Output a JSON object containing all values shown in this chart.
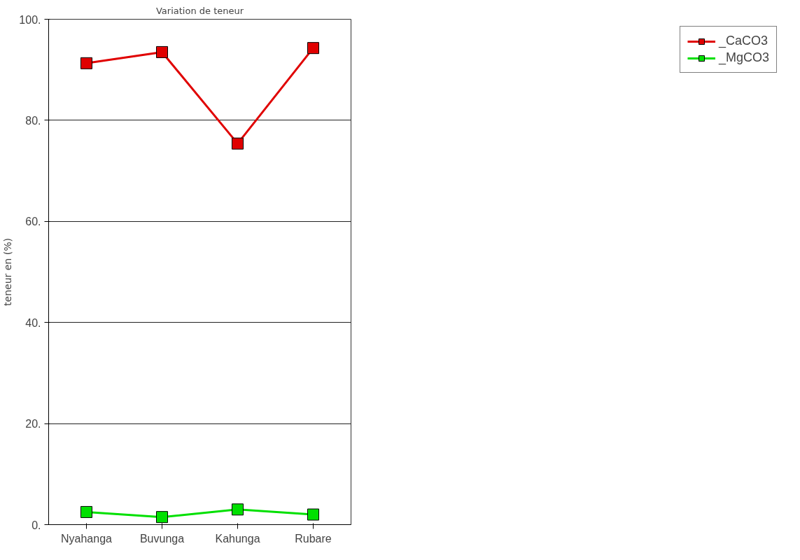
{
  "chart_data": {
    "type": "line",
    "title": "Variation de teneur",
    "ylabel": "teneur en (%)",
    "categories": [
      "Nyahanga",
      "Buvunga",
      "Kahunga",
      "Rubare"
    ],
    "series": [
      {
        "name": "_CaCO3",
        "color": "#e00000",
        "values": [
          91.3,
          93.5,
          75.4,
          94.3
        ]
      },
      {
        "name": "_MgCO3",
        "color": "#00e000",
        "values": [
          2.5,
          1.5,
          3,
          2
        ]
      }
    ],
    "ylim": [
      0,
      100
    ],
    "yticks": [
      {
        "value": 0,
        "label": "0."
      },
      {
        "value": 20,
        "label": "20."
      },
      {
        "value": 40,
        "label": "40."
      },
      {
        "value": 60,
        "label": "60."
      },
      {
        "value": 80,
        "label": "80."
      },
      {
        "value": 100,
        "label": "100."
      }
    ],
    "grid": "y",
    "legend": "right",
    "marker": "square",
    "line_style": "solid"
  }
}
